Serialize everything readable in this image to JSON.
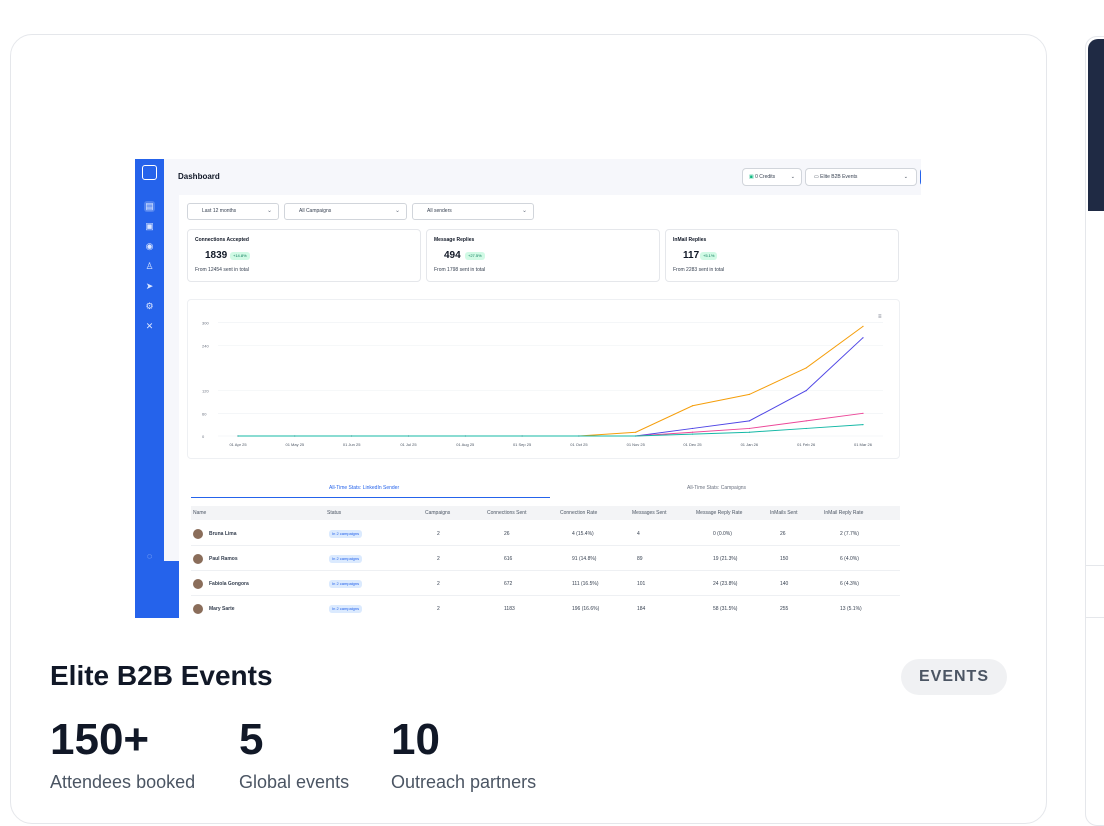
{
  "preview": {
    "header": {
      "title": "Dashboard",
      "credits": "0 Credits",
      "workspace": "Elite B2B Events"
    },
    "filters": [
      "Last 12 months",
      "All Campaigns",
      "All senders"
    ],
    "stats": [
      {
        "label": "Connections Accepted",
        "value": "1839",
        "badge": "+14.8%",
        "sub": "From 12454 sent in total"
      },
      {
        "label": "Message Replies",
        "value": "494",
        "badge": "+27.5%",
        "sub": "From 1798 sent in total"
      },
      {
        "label": "InMail Replies",
        "value": "117",
        "badge": "+5.1%",
        "sub": "From 2283 sent in total"
      }
    ],
    "chart_data": {
      "type": "line",
      "x": [
        "01 Apr 25",
        "01 May 25",
        "01 Jun 25",
        "01 Jul 25",
        "01 Aug 25",
        "01 Sep 25",
        "01 Oct 25",
        "01 Nov 25",
        "01 Dec 25",
        "01 Jan 26",
        "01 Feb 26",
        "01 Mar 26"
      ],
      "yticks": [
        "0",
        "60",
        "120",
        "240",
        "300"
      ],
      "ylim": [
        0,
        320
      ],
      "series": [
        {
          "color": "#f59e0b",
          "values": [
            0,
            0,
            0,
            0,
            0,
            0,
            0,
            10,
            80,
            110,
            180,
            290
          ]
        },
        {
          "color": "#4f46e5",
          "values": [
            0,
            0,
            0,
            0,
            0,
            0,
            0,
            0,
            20,
            40,
            120,
            260
          ]
        },
        {
          "color": "#ec4899",
          "values": [
            0,
            0,
            0,
            0,
            0,
            0,
            0,
            0,
            10,
            20,
            40,
            60
          ]
        },
        {
          "color": "#14b8a6",
          "values": [
            0,
            0,
            0,
            0,
            0,
            0,
            0,
            0,
            5,
            10,
            20,
            30
          ]
        }
      ]
    },
    "tabs": [
      "All-Time Stats: LinkedIn Sender",
      "All-Time Stats: Campaigns"
    ],
    "columns": [
      "Name",
      "Status",
      "Campaigns",
      "Connections Sent",
      "Connection Rate",
      "Messages Sent",
      "Message Reply Rate",
      "InMails Sent",
      "InMail Reply Rate"
    ],
    "rows": [
      [
        "Bruna Lima",
        "In 2 campaigns",
        "2",
        "26",
        "4 (15.4%)",
        "4",
        "0 (0.0%)",
        "26",
        "2 (7.7%)"
      ],
      [
        "Paul Ramos",
        "In 2 campaigns",
        "2",
        "616",
        "91 (14.8%)",
        "89",
        "19 (21.3%)",
        "150",
        "6 (4.0%)"
      ],
      [
        "Fabiola Gongora",
        "In 2 campaigns",
        "2",
        "672",
        "111 (16.5%)",
        "101",
        "24 (23.8%)",
        "140",
        "6 (4.3%)"
      ],
      [
        "Mary Sarte",
        "In 2 campaigns",
        "2",
        "1183",
        "196 (16.6%)",
        "184",
        "58 (31.5%)",
        "255",
        "13 (5.1%)"
      ]
    ]
  },
  "card": {
    "title": "Elite B2B Events",
    "tag": "EVENTS",
    "metrics": [
      {
        "value": "150+",
        "label": "Attendees booked"
      },
      {
        "value": "5",
        "label": "Global events"
      },
      {
        "value": "10",
        "label": "Outreach partners"
      }
    ]
  }
}
